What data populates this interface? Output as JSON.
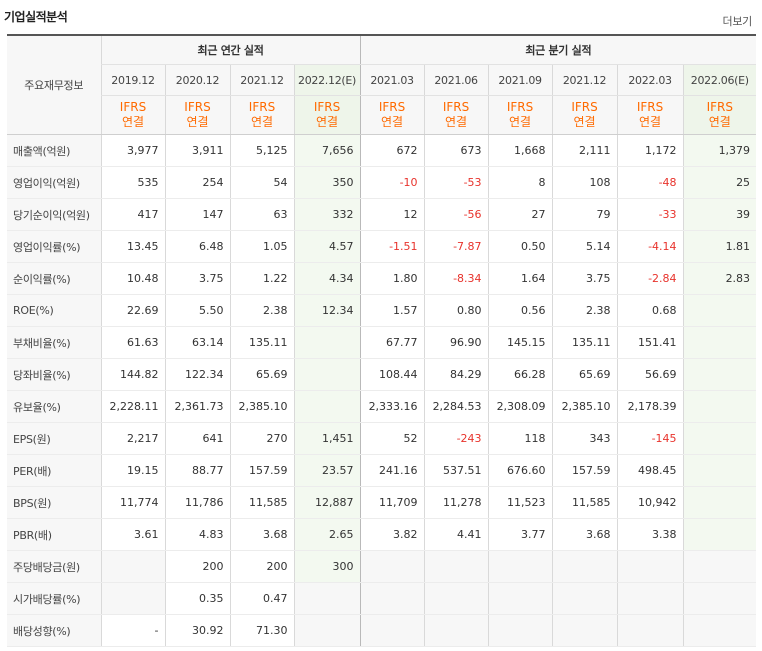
{
  "header": {
    "title": "기업실적분석",
    "more_link": "더보기"
  },
  "table": {
    "corner_label": "주요재무정보",
    "groups": {
      "annual": "최근 연간 실적",
      "quarterly": "최근 분기 실적"
    },
    "periods": [
      "2019.12",
      "2020.12",
      "2021.12",
      "2022.12(E)",
      "2021.03",
      "2021.06",
      "2021.09",
      "2021.12",
      "2022.03",
      "2022.06(E)"
    ],
    "accounting": [
      "IFRS\n연결",
      "IFRS\n연결",
      "IFRS\n연결",
      "IFRS\n연결",
      "IFRS\n연결",
      "IFRS\n연결",
      "IFRS\n연결",
      "IFRS\n연결",
      "IFRS\n연결",
      "IFRS\n연결"
    ],
    "rows": [
      {
        "label": "매출액(억원)",
        "values": [
          "3,977",
          "3,911",
          "5,125",
          "7,656",
          "672",
          "673",
          "1,668",
          "2,111",
          "1,172",
          "1,379"
        ]
      },
      {
        "label": "영업이익(억원)",
        "values": [
          "535",
          "254",
          "54",
          "350",
          "-10",
          "-53",
          "8",
          "108",
          "-48",
          "25"
        ]
      },
      {
        "label": "당기순이익(억원)",
        "values": [
          "417",
          "147",
          "63",
          "332",
          "12",
          "-56",
          "27",
          "79",
          "-33",
          "39"
        ]
      },
      {
        "label": "영업이익률(%)",
        "values": [
          "13.45",
          "6.48",
          "1.05",
          "4.57",
          "-1.51",
          "-7.87",
          "0.50",
          "5.14",
          "-4.14",
          "1.81"
        ]
      },
      {
        "label": "순이익률(%)",
        "values": [
          "10.48",
          "3.75",
          "1.22",
          "4.34",
          "1.80",
          "-8.34",
          "1.64",
          "3.75",
          "-2.84",
          "2.83"
        ]
      },
      {
        "label": "ROE(%)",
        "values": [
          "22.69",
          "5.50",
          "2.38",
          "12.34",
          "1.57",
          "0.80",
          "0.56",
          "2.38",
          "0.68",
          ""
        ]
      },
      {
        "label": "부채비율(%)",
        "values": [
          "61.63",
          "63.14",
          "135.11",
          "",
          "67.77",
          "96.90",
          "145.15",
          "135.11",
          "151.41",
          ""
        ]
      },
      {
        "label": "당좌비율(%)",
        "values": [
          "144.82",
          "122.34",
          "65.69",
          "",
          "108.44",
          "84.29",
          "66.28",
          "65.69",
          "56.69",
          ""
        ]
      },
      {
        "label": "유보율(%)",
        "values": [
          "2,228.11",
          "2,361.73",
          "2,385.10",
          "",
          "2,333.16",
          "2,284.53",
          "2,308.09",
          "2,385.10",
          "2,178.39",
          ""
        ]
      },
      {
        "label": "EPS(원)",
        "values": [
          "2,217",
          "641",
          "270",
          "1,451",
          "52",
          "-243",
          "118",
          "343",
          "-145",
          ""
        ]
      },
      {
        "label": "PER(배)",
        "values": [
          "19.15",
          "88.77",
          "157.59",
          "23.57",
          "241.16",
          "537.51",
          "676.60",
          "157.59",
          "498.45",
          ""
        ]
      },
      {
        "label": "BPS(원)",
        "values": [
          "11,774",
          "11,786",
          "11,585",
          "12,887",
          "11,709",
          "11,278",
          "11,523",
          "11,585",
          "10,942",
          ""
        ]
      },
      {
        "label": "PBR(배)",
        "values": [
          "3.61",
          "4.83",
          "3.68",
          "2.65",
          "3.82",
          "4.41",
          "3.77",
          "3.68",
          "3.38",
          ""
        ]
      },
      {
        "label": "주당배당금(원)",
        "values": [
          "",
          "200",
          "200",
          "300",
          "",
          "",
          "",
          "",
          "",
          ""
        ]
      },
      {
        "label": "시가배당률(%)",
        "values": [
          "",
          "0.35",
          "0.47",
          "",
          "",
          "",
          "",
          "",
          "",
          ""
        ]
      },
      {
        "label": "배당성향(%)",
        "values": [
          "-",
          "30.92",
          "71.30",
          "",
          "",
          "",
          "",
          "",
          "",
          ""
        ]
      }
    ],
    "colors": {
      "negative": "#e8332c",
      "accounting": "#ff6a00",
      "estimate_bg": "#f3f9f0",
      "header_bg": "#f7f7f7"
    }
  }
}
